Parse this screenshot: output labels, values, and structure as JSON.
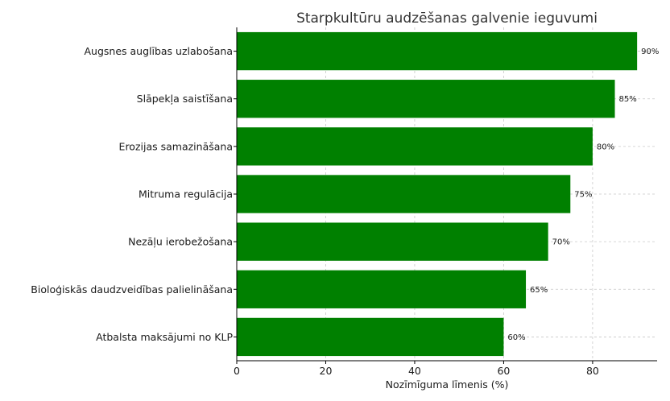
{
  "chart_data": {
    "type": "bar",
    "orientation": "horizontal",
    "title": "Starpkultūru audzēšanas galvenie ieguvumi",
    "xlabel": "Nozīmīguma līmenis (%)",
    "ylabel": "",
    "categories": [
      "Atbalsta maksājumi no KLP",
      "Bioloģiskās daudzveidības palielināšana",
      "Nezāļu ierobežošana",
      "Mitruma regulācija",
      "Erozijas samazināšana",
      "Slāpekļa saistīšana",
      "Augsnes auglības uzlabošana"
    ],
    "values": [
      60,
      65,
      70,
      75,
      80,
      85,
      90
    ],
    "data_labels": [
      "60%",
      "65%",
      "70%",
      "75%",
      "80%",
      "85%",
      "90%"
    ],
    "xlim": [
      0,
      94.5
    ],
    "xticks": [
      0,
      20,
      40,
      60,
      80
    ],
    "xtick_labels": [
      "0",
      "20",
      "40",
      "60",
      "80"
    ],
    "grid": true,
    "bar_color": "#008000"
  }
}
